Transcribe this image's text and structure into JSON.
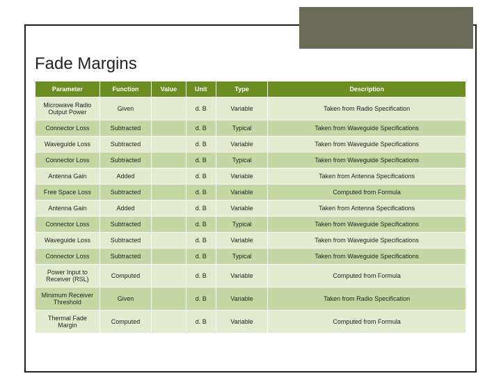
{
  "title": "Fade Margins",
  "colors": {
    "header_bg": "#6b8e23",
    "header_fg": "#ffffff",
    "row_odd": "#e2ebd0",
    "row_even": "#c5d8a4",
    "accent_block": "#6b6b5a",
    "border": "#1e1e1e"
  },
  "table": {
    "columns": [
      {
        "key": "parameter",
        "label": "Parameter",
        "class": "col-param"
      },
      {
        "key": "function",
        "label": "Function",
        "class": "col-func"
      },
      {
        "key": "value",
        "label": "Value",
        "class": "col-value"
      },
      {
        "key": "unit",
        "label": "Unit",
        "class": "col-unit"
      },
      {
        "key": "type",
        "label": "Type",
        "class": "col-type"
      },
      {
        "key": "description",
        "label": "Description",
        "class": "col-desc"
      }
    ],
    "rows": [
      {
        "parameter": "Microwave Radio Output Power",
        "function": "Given",
        "value": "",
        "unit": "d. B",
        "type": "Variable",
        "description": "Taken from Radio Specification"
      },
      {
        "parameter": "Connector Loss",
        "function": "Subtracted",
        "value": "",
        "unit": "d. B",
        "type": "Typical",
        "description": "Taken from Waveguide Specifications"
      },
      {
        "parameter": "Waveguide Loss",
        "function": "Subtracted",
        "value": "",
        "unit": "d. B",
        "type": "Variable",
        "description": "Taken from Waveguide Specifications"
      },
      {
        "parameter": "Connector Loss",
        "function": "Subtracted",
        "value": "",
        "unit": "d. B",
        "type": "Typical",
        "description": "Taken from Waveguide Specifications"
      },
      {
        "parameter": "Antenna Gain",
        "function": "Added",
        "value": "",
        "unit": "d. B",
        "type": "Variable",
        "description": "Taken from Antenna Specifications"
      },
      {
        "parameter": "Free Space Loss",
        "function": "Subtracted",
        "value": "",
        "unit": "d. B",
        "type": "Variable",
        "description": "Computed from Formula"
      },
      {
        "parameter": "Antenna Gain",
        "function": "Added",
        "value": "",
        "unit": "d. B",
        "type": "Variable",
        "description": "Taken from Antenna Specifications"
      },
      {
        "parameter": "Connector Loss",
        "function": "Subtracted",
        "value": "",
        "unit": "d. B",
        "type": "Typical",
        "description": "Taken from Waveguide Specifications"
      },
      {
        "parameter": "Waveguide Loss",
        "function": "Subtracted",
        "value": "",
        "unit": "d. B",
        "type": "Variable",
        "description": "Taken from Waveguide Specifications"
      },
      {
        "parameter": "Connector Loss",
        "function": "Subtracted",
        "value": "",
        "unit": "d. B",
        "type": "Typical",
        "description": "Taken from Waveguide Specifications"
      },
      {
        "parameter": "Power Input to Receiver (RSL)",
        "function": "Computed",
        "value": "",
        "unit": "d. B",
        "type": "Variable",
        "description": "Computed from Formula"
      },
      {
        "parameter": "Minimum Receiver Threshold",
        "function": "Given",
        "value": "",
        "unit": "d. B",
        "type": "Variable",
        "description": "Taken from Radio Specification"
      },
      {
        "parameter": "Thermal Fade Margin",
        "function": "Computed",
        "value": "",
        "unit": "d. B",
        "type": "Variable",
        "description": "Computed from Formula"
      }
    ]
  }
}
